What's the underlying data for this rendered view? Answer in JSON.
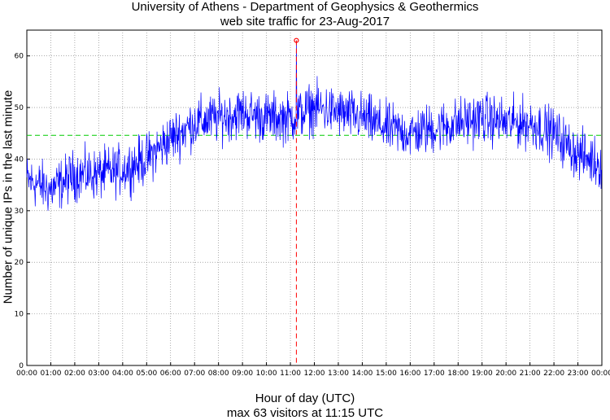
{
  "title_line1": "University of Athens - Department of Geophysics & Geothermics",
  "title_line2": "web site traffic for 23-Aug-2017",
  "xlabel": "Hour of day (UTC)",
  "note": "max 63 visitors at 11:15 UTC",
  "chart_data": {
    "type": "line",
    "ylabel": "Number of unique IPs in the last minute",
    "xlabel": "Hour of day (UTC)",
    "xlim_hours": [
      0,
      24
    ],
    "ylim": [
      0,
      65
    ],
    "x_tick_labels": [
      "00:00",
      "01:00",
      "02:00",
      "03:00",
      "04:00",
      "05:00",
      "06:00",
      "07:00",
      "08:00",
      "09:00",
      "10:00",
      "11:00",
      "12:00",
      "13:00",
      "14:00",
      "15:00",
      "16:00",
      "17:00",
      "18:00",
      "19:00",
      "20:00",
      "21:00",
      "22:00",
      "23:00",
      "00:00"
    ],
    "y_ticks": [
      0,
      10,
      20,
      30,
      40,
      50,
      60
    ],
    "grid": true,
    "series_color": "#0000ff",
    "mean_line": {
      "value": 44.6,
      "color": "#00cc00"
    },
    "max_marker": {
      "time": "11:15",
      "value": 63,
      "color": "#ff0000"
    },
    "approx_hourly_level": [
      36,
      34,
      37,
      37,
      38,
      40,
      44,
      47,
      48,
      49,
      48,
      48,
      50,
      49,
      48,
      46,
      45,
      46,
      47,
      48,
      47,
      47,
      45,
      41,
      39
    ],
    "noise_amplitude": 4
  }
}
